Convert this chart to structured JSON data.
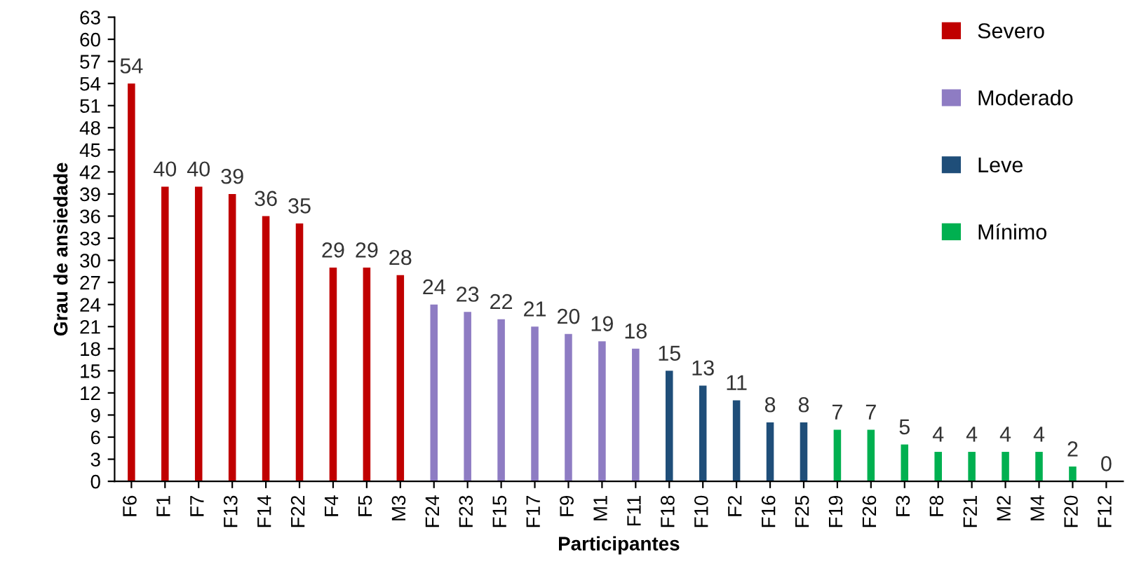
{
  "chart_data": {
    "type": "bar",
    "xlabel": "Participantes",
    "ylabel": "Grau de ansiedade",
    "categories": [
      "F6",
      "F1",
      "F7",
      "F13",
      "F14",
      "F22",
      "F4",
      "F5",
      "M3",
      "F24",
      "F23",
      "F15",
      "F17",
      "F9",
      "M1",
      "F11",
      "F18",
      "F10",
      "F2",
      "F16",
      "F25",
      "F19",
      "F26",
      "F3",
      "F8",
      "F21",
      "M2",
      "M4",
      "F20",
      "F12"
    ],
    "series": [
      {
        "name": "Severo",
        "color": "#c00000",
        "values": [
          54,
          40,
          40,
          39,
          36,
          35,
          29,
          29,
          28,
          null,
          null,
          null,
          null,
          null,
          null,
          null,
          null,
          null,
          null,
          null,
          null,
          null,
          null,
          null,
          null,
          null,
          null,
          null,
          null,
          null
        ]
      },
      {
        "name": "Moderado",
        "color": "#8e7cc3",
        "values": [
          null,
          null,
          null,
          null,
          null,
          null,
          null,
          null,
          null,
          24,
          23,
          22,
          21,
          20,
          19,
          18,
          null,
          null,
          null,
          null,
          null,
          null,
          null,
          null,
          null,
          null,
          null,
          null,
          null,
          null
        ]
      },
      {
        "name": "Leve",
        "color": "#1f4e79",
        "values": [
          null,
          null,
          null,
          null,
          null,
          null,
          null,
          null,
          null,
          null,
          null,
          null,
          null,
          null,
          null,
          null,
          15,
          13,
          11,
          8,
          8,
          null,
          null,
          null,
          null,
          null,
          null,
          null,
          null,
          null
        ]
      },
      {
        "name": "Mínimo",
        "color": "#00b050",
        "values": [
          null,
          null,
          null,
          null,
          null,
          null,
          null,
          null,
          null,
          null,
          null,
          null,
          null,
          null,
          null,
          null,
          null,
          null,
          null,
          null,
          null,
          7,
          7,
          5,
          4,
          4,
          4,
          4,
          2,
          0
        ]
      }
    ],
    "ylim": [
      0,
      63
    ],
    "yticks": [
      0,
      3,
      6,
      9,
      12,
      15,
      18,
      21,
      24,
      27,
      30,
      33,
      36,
      39,
      42,
      45,
      48,
      51,
      54,
      57,
      60,
      63
    ],
    "data_labels": true,
    "legend": "right",
    "grid": false
  }
}
